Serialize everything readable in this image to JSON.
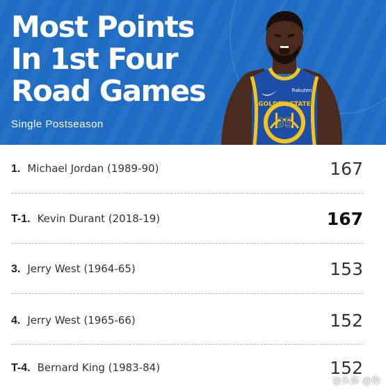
{
  "header": {
    "title": "Most Points\nIn 1st Four\nRoad Games",
    "subtitle": "Single Postseason",
    "bg_color": "#1e6cc4"
  },
  "player_image": {
    "icon": "basketball-player-icon",
    "jersey_team_text": "GOLDEN STATE",
    "jersey_number": "35",
    "jersey_sponsor": "Rakuten",
    "jersey_color": "#1d4fa8",
    "trim_color": "#f6c21c"
  },
  "list": {
    "rows": [
      {
        "rank": "1.",
        "name": "Michael Jordan (1989-90)",
        "value": "167",
        "bold": false
      },
      {
        "rank": "T-1.",
        "name": "Kevin Durant (2018-19)",
        "value": "167",
        "bold": true
      },
      {
        "rank": "3.",
        "name": "Jerry West (1964-65)",
        "value": "153",
        "bold": false
      },
      {
        "rank": "4.",
        "name": "Jerry West (1965-66)",
        "value": "152",
        "bold": false
      },
      {
        "rank": "T-4.",
        "name": "Bernard King (1983-84)",
        "value": "152",
        "bold": false
      }
    ]
  },
  "watermark": {
    "text": "@头条 @你",
    "icon": "chat-bubble-icon"
  }
}
